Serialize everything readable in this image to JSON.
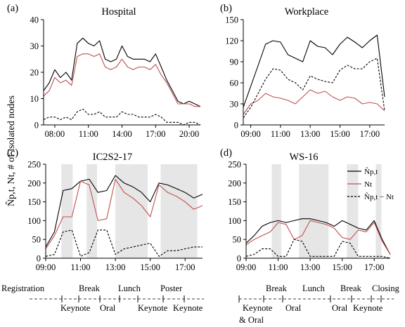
{
  "ylabel": "N̂p,t, Nt, # of isolated nodes",
  "panels": [
    {
      "label": "(a)",
      "title": "Hospital"
    },
    {
      "label": "(b)",
      "title": "Workplace"
    },
    {
      "label": "(c)",
      "title": "IC2S2-17"
    },
    {
      "label": "(d)",
      "title": "WS-16"
    }
  ],
  "legend": [
    "N̂p,t",
    "Nt",
    "N̂p,t − Nt"
  ],
  "colors": {
    "black": "#000000",
    "red": "#c0504d",
    "shade": "#e6e6e6"
  },
  "schedule_c": {
    "top": [
      "Registration",
      "Break",
      "Lunch",
      "Poster"
    ],
    "bottom": [
      "Keynote",
      "Oral",
      "Keynote",
      "Keynote"
    ]
  },
  "schedule_d": {
    "top": [
      "Break",
      "Lunch",
      "Break",
      "Closing"
    ],
    "bottom": [
      "Keynote",
      "& Oral",
      "Oral",
      "Oral",
      "Keynote"
    ]
  },
  "chart_data": [
    {
      "type": "line",
      "title": "Hospital",
      "panel": "(a)",
      "xlim": [
        7.0,
        21.0
      ],
      "ylim": [
        0,
        40
      ],
      "xticks": [
        "08:00",
        "11:00",
        "14:00",
        "17:00",
        "20:00"
      ],
      "xtick_values": [
        8,
        11,
        14,
        17,
        20
      ],
      "yticks": [
        0,
        10,
        20,
        30,
        40
      ],
      "x": [
        7.0,
        7.5,
        8.0,
        8.5,
        9.0,
        9.5,
        10.0,
        10.5,
        11.0,
        11.5,
        12.0,
        12.5,
        13.0,
        13.5,
        14.0,
        14.5,
        15.0,
        15.5,
        16.0,
        16.5,
        17.0,
        17.5,
        18.0,
        18.5,
        19.0,
        19.5,
        20.0,
        20.5,
        21.0
      ],
      "series": [
        {
          "name": "N̂p,t",
          "values": [
            13,
            16,
            21,
            18,
            20,
            17,
            31,
            33,
            31,
            30,
            32,
            25,
            24,
            25,
            30,
            26,
            25,
            25,
            25,
            24,
            27,
            22,
            17,
            13,
            9,
            8,
            9,
            8,
            7
          ]
        },
        {
          "name": "Nt",
          "values": [
            11,
            13,
            18,
            16,
            17,
            15,
            26,
            27,
            27,
            26,
            27,
            22,
            21,
            22,
            25,
            22,
            21,
            22,
            22,
            21,
            23,
            19,
            16,
            12,
            8,
            8,
            8,
            7,
            7
          ]
        },
        {
          "name": "N̂p,t − Nt",
          "values": [
            2,
            3,
            3,
            2,
            3,
            2,
            5,
            6,
            4,
            4,
            5,
            3,
            3,
            3,
            5,
            4,
            4,
            3,
            3,
            3,
            4,
            3,
            1,
            1,
            1,
            0,
            1,
            1,
            0
          ]
        }
      ]
    },
    {
      "type": "line",
      "title": "Workplace",
      "panel": "(b)",
      "xlim": [
        8.5,
        18.0
      ],
      "ylim": [
        0,
        150
      ],
      "xticks": [
        "09:00",
        "11:00",
        "13:00",
        "15:00",
        "17:00"
      ],
      "xtick_values": [
        9,
        11,
        13,
        15,
        17
      ],
      "yticks": [
        0,
        30,
        60,
        90,
        120,
        150
      ],
      "x": [
        8.5,
        9.0,
        9.5,
        10.0,
        10.5,
        11.0,
        11.5,
        12.0,
        12.5,
        13.0,
        13.5,
        14.0,
        14.5,
        15.0,
        15.5,
        16.0,
        16.5,
        17.0,
        17.5,
        18.0
      ],
      "series": [
        {
          "name": "N̂p,t",
          "values": [
            25,
            55,
            85,
            115,
            120,
            118,
            100,
            95,
            90,
            120,
            112,
            110,
            100,
            115,
            125,
            118,
            110,
            120,
            128,
            40
          ]
        },
        {
          "name": "Nt",
          "values": [
            15,
            30,
            35,
            45,
            40,
            38,
            35,
            30,
            40,
            50,
            45,
            48,
            40,
            35,
            40,
            38,
            30,
            32,
            30,
            20
          ]
        },
        {
          "name": "N̂p,t − Nt",
          "values": [
            10,
            25,
            45,
            65,
            80,
            78,
            65,
            60,
            50,
            70,
            65,
            62,
            60,
            78,
            85,
            80,
            80,
            90,
            95,
            20
          ]
        }
      ]
    },
    {
      "type": "line",
      "title": "IC2S2-17",
      "panel": "(c)",
      "xlim": [
        9.0,
        18.0
      ],
      "ylim": [
        0,
        250
      ],
      "xticks": [
        "09:00",
        "11:00",
        "13:00",
        "15:00",
        "17:00"
      ],
      "xtick_values": [
        9,
        11,
        13,
        15,
        17
      ],
      "yticks": [
        0,
        50,
        100,
        150,
        200,
        250
      ],
      "x": [
        9.0,
        9.5,
        10.0,
        10.5,
        11.0,
        11.5,
        12.0,
        12.5,
        13.0,
        13.5,
        14.0,
        14.5,
        15.0,
        15.5,
        16.0,
        16.5,
        17.0,
        17.5,
        18.0
      ],
      "series": [
        {
          "name": "N̂p,t",
          "values": [
            30,
            70,
            180,
            185,
            205,
            210,
            175,
            180,
            220,
            200,
            190,
            175,
            150,
            200,
            195,
            185,
            175,
            160,
            170
          ]
        },
        {
          "name": "Nt",
          "values": [
            25,
            60,
            110,
            110,
            205,
            195,
            100,
            105,
            210,
            175,
            160,
            140,
            110,
            195,
            175,
            165,
            150,
            130,
            140
          ]
        },
        {
          "name": "N̂p,t − Nt",
          "values": [
            5,
            10,
            70,
            75,
            5,
            15,
            75,
            75,
            10,
            25,
            30,
            35,
            40,
            5,
            20,
            20,
            25,
            30,
            30
          ]
        }
      ]
    },
    {
      "type": "line",
      "title": "WS-16",
      "panel": "(d)",
      "xlim": [
        9.0,
        18.0
      ],
      "ylim": [
        0,
        250
      ],
      "xticks": [
        "09:00",
        "11:00",
        "13:00",
        "15:00",
        "17:00"
      ],
      "xtick_values": [
        9,
        11,
        13,
        15,
        17
      ],
      "yticks": [
        0,
        50,
        100,
        150,
        200,
        250
      ],
      "x": [
        9.0,
        9.5,
        10.0,
        10.5,
        11.0,
        11.5,
        12.0,
        12.5,
        13.0,
        13.5,
        14.0,
        14.5,
        15.0,
        15.5,
        16.0,
        16.5,
        17.0,
        17.5,
        18.0
      ],
      "series": [
        {
          "name": "N̂p,t",
          "values": [
            40,
            60,
            85,
            95,
            100,
            95,
            100,
            105,
            105,
            100,
            95,
            85,
            100,
            90,
            80,
            75,
            100,
            50,
            10
          ]
        },
        {
          "name": "Nt",
          "values": [
            35,
            50,
            60,
            70,
            95,
            90,
            50,
            60,
            100,
            95,
            90,
            80,
            55,
            50,
            75,
            70,
            95,
            45,
            10
          ]
        },
        {
          "name": "N̂p,t − Nt",
          "values": [
            5,
            10,
            25,
            25,
            5,
            5,
            50,
            45,
            5,
            5,
            5,
            5,
            45,
            40,
            5,
            5,
            5,
            5,
            0
          ]
        }
      ]
    }
  ]
}
